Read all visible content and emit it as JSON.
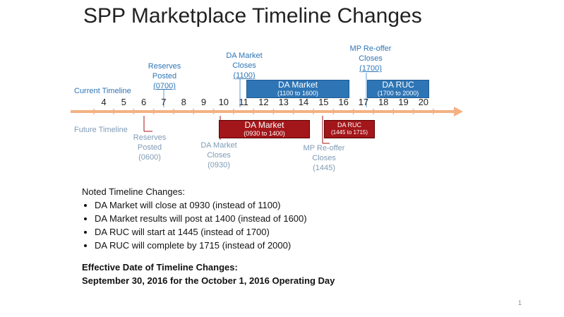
{
  "title": "SPP Marketplace Timeline Changes",
  "timeline": {
    "current_label": "Current Timeline",
    "future_label": "Future Timeline",
    "hours": [
      "4",
      "5",
      "6",
      "7",
      "8",
      "9",
      "10",
      "11",
      "12",
      "13",
      "14",
      "15",
      "16",
      "17",
      "18",
      "19",
      "20"
    ]
  },
  "current": {
    "reserves": {
      "line1": "Reserves",
      "line2": "Posted",
      "time": "(0700)"
    },
    "da_close": {
      "line1": "DA Market",
      "line2": "Closes",
      "time": "(1100)"
    },
    "mp_reoffer": {
      "line1": "MP Re-offer",
      "line2": "Closes",
      "time": "(1700)"
    },
    "da_market_box": {
      "title": "DA Market",
      "range": "(1100 to 1600)"
    },
    "da_ruc_box": {
      "title": "DA RUC",
      "range": "(1700 to 2000)"
    }
  },
  "future": {
    "reserves": {
      "line1": "Reserves",
      "line2": "Posted",
      "time": "(0600)"
    },
    "da_close": {
      "line1": "DA Market",
      "line2": "Closes",
      "time": "(0930)"
    },
    "mp_reoffer": {
      "line1": "MP Re-offer",
      "line2": "Closes",
      "time": "(1445)"
    },
    "da_market_box": {
      "title": "DA Market",
      "range": "(0930 to 1400)"
    },
    "da_ruc_box": {
      "title": "DA RUC",
      "range": "(1445 to 1715)"
    }
  },
  "notes": {
    "heading": "Noted Timeline Changes:",
    "items": [
      "DA Market will close at 0930 (instead of 1100)",
      "DA Market results will post at 1400 (instead of 1600)",
      "DA RUC will start at 1445 (instead of 1700)",
      "DA RUC will complete by 1715 (instead of 2000)"
    ]
  },
  "effective": {
    "heading": "Effective Date of Timeline Changes:",
    "text": "September 30, 2016 for the October 1, 2016 Operating Day"
  },
  "page_number": "1",
  "colors": {
    "arrow": "#f4b183",
    "blue": "#2e75b6",
    "red": "#a3161a"
  }
}
